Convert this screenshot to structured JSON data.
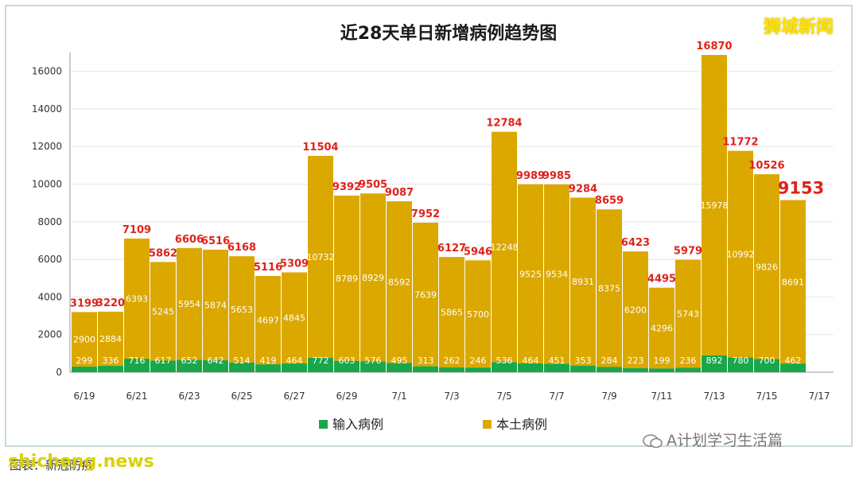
{
  "brand": "狮城新闻",
  "footer": {
    "wechat": "A计划学习生活篇",
    "site": "shicheng.news",
    "source": "图表：新冠防疫"
  },
  "colors": {
    "local": "#dba800",
    "imported": "#1aa64a",
    "total_label": "#e0221b"
  },
  "chart_data": {
    "type": "bar",
    "stacked": true,
    "title": "近28天单日新增病例趋势图",
    "categories": [
      "6/19",
      "6/20",
      "6/21",
      "6/22",
      "6/23",
      "6/24",
      "6/25",
      "6/26",
      "6/27",
      "6/28",
      "6/29",
      "6/30",
      "7/1",
      "7/2",
      "7/3",
      "7/4",
      "7/5",
      "7/6",
      "7/7",
      "7/8",
      "7/9",
      "7/10",
      "7/11",
      "7/12",
      "7/13",
      "7/14",
      "7/15",
      "7/16"
    ],
    "x_tick_labels": [
      "6/19",
      "6/21",
      "6/23",
      "6/25",
      "6/27",
      "6/29",
      "7/1",
      "7/3",
      "7/5",
      "7/7",
      "7/9",
      "7/11",
      "7/13",
      "7/15",
      "7/17"
    ],
    "ylim": [
      0,
      17000
    ],
    "yticks": [
      0,
      2000,
      4000,
      6000,
      8000,
      10000,
      12000,
      14000,
      16000
    ],
    "grid": true,
    "legend_position": "bottom",
    "series": [
      {
        "name": "输入病例",
        "values": [
          299,
          336,
          716,
          617,
          652,
          642,
          514,
          419,
          464,
          772,
          603,
          576,
          495,
          313,
          262,
          246,
          536,
          464,
          451,
          353,
          284,
          223,
          199,
          236,
          892,
          780,
          700,
          462
        ]
      },
      {
        "name": "本土病例",
        "values": [
          2900,
          2884,
          6393,
          5245,
          5954,
          5874,
          5653,
          4697,
          4845,
          10732,
          8789,
          8929,
          8592,
          7639,
          5865,
          5700,
          12248,
          9525,
          9534,
          8931,
          8375,
          6200,
          4296,
          5743,
          15978,
          10992,
          9826,
          8691
        ]
      }
    ],
    "totals": [
      3199,
      3220,
      7109,
      5862,
      6606,
      6516,
      6168,
      5116,
      5309,
      11504,
      9392,
      9505,
      9087,
      7952,
      6127,
      5946,
      12784,
      9989,
      9985,
      9284,
      8659,
      6423,
      4495,
      5979,
      16870,
      11772,
      10526,
      9153
    ]
  }
}
